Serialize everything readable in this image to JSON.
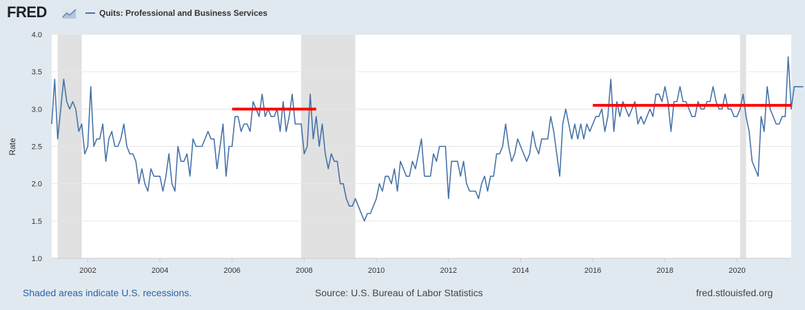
{
  "brand": {
    "logo_text": "FRED"
  },
  "chart_data": {
    "type": "line",
    "title": "",
    "series": [
      {
        "name": "Quits: Professional and Business Services",
        "color": "#4572a7",
        "values": [
          2.8,
          3.4,
          2.6,
          3.0,
          3.4,
          3.1,
          3.0,
          3.1,
          3.0,
          2.7,
          2.8,
          2.4,
          2.5,
          3.3,
          2.5,
          2.6,
          2.6,
          2.8,
          2.3,
          2.6,
          2.7,
          2.5,
          2.5,
          2.6,
          2.8,
          2.5,
          2.4,
          2.4,
          2.3,
          2.0,
          2.2,
          2.0,
          1.9,
          2.2,
          2.1,
          2.1,
          2.1,
          1.9,
          2.1,
          2.4,
          2.0,
          1.9,
          2.5,
          2.3,
          2.3,
          2.4,
          2.1,
          2.6,
          2.5,
          2.5,
          2.5,
          2.6,
          2.7,
          2.6,
          2.6,
          2.2,
          2.5,
          2.8,
          2.1,
          2.5,
          2.5,
          2.9,
          2.9,
          2.7,
          2.8,
          2.8,
          2.7,
          3.1,
          3.0,
          2.9,
          3.2,
          2.9,
          3.0,
          2.9,
          2.9,
          3.0,
          2.7,
          3.1,
          2.7,
          2.9,
          3.2,
          2.8,
          2.8,
          2.8,
          2.4,
          2.5,
          3.2,
          2.6,
          2.9,
          2.5,
          2.8,
          2.4,
          2.2,
          2.4,
          2.3,
          2.3,
          2.0,
          2.0,
          1.8,
          1.7,
          1.7,
          1.8,
          1.7,
          1.6,
          1.5,
          1.6,
          1.6,
          1.7,
          1.8,
          2.0,
          1.9,
          2.1,
          2.1,
          2.0,
          2.2,
          1.9,
          2.3,
          2.2,
          2.1,
          2.1,
          2.3,
          2.2,
          2.4,
          2.6,
          2.1,
          2.1,
          2.1,
          2.4,
          2.3,
          2.5,
          2.5,
          2.5,
          1.8,
          2.3,
          2.3,
          2.3,
          2.1,
          2.3,
          2.0,
          1.9,
          1.9,
          1.9,
          1.8,
          2.0,
          2.1,
          1.9,
          2.1,
          2.1,
          2.4,
          2.4,
          2.5,
          2.8,
          2.5,
          2.3,
          2.4,
          2.6,
          2.5,
          2.4,
          2.3,
          2.4,
          2.7,
          2.5,
          2.4,
          2.6,
          2.6,
          2.6,
          2.9,
          2.7,
          2.4,
          2.1,
          2.8,
          3.0,
          2.8,
          2.6,
          2.8,
          2.6,
          2.8,
          2.6,
          2.8,
          2.7,
          2.8,
          2.9,
          2.9,
          3.0,
          2.7,
          2.9,
          3.4,
          2.7,
          3.1,
          2.9,
          3.1,
          3.0,
          2.9,
          3.0,
          3.1,
          2.8,
          2.9,
          2.8,
          2.9,
          3.0,
          2.9,
          3.2,
          3.2,
          3.1,
          3.3,
          3.1,
          2.7,
          3.1,
          3.1,
          3.3,
          3.1,
          3.1,
          3.0,
          2.9,
          2.9,
          3.1,
          3.0,
          3.0,
          3.1,
          3.1,
          3.3,
          3.1,
          3.0,
          3.0,
          3.2,
          3.0,
          3.0,
          2.9,
          2.9,
          3.0,
          3.2,
          2.9,
          2.7,
          2.3,
          2.2,
          2.1,
          2.9,
          2.7,
          3.3,
          3.0,
          2.9,
          2.8,
          2.8,
          2.9,
          2.9,
          3.7,
          3.0,
          3.3,
          3.3,
          3.3,
          3.3
        ]
      }
    ],
    "x_start": "2001-01",
    "x_end": "2021-07",
    "frequency": "monthly",
    "ylabel": "Rate",
    "ylim": [
      1.0,
      4.0
    ],
    "y_ticks": [
      "1.0",
      "1.5",
      "2.0",
      "2.5",
      "3.0",
      "3.5",
      "4.0"
    ],
    "x_ticks": [
      "2002",
      "2004",
      "2006",
      "2008",
      "2010",
      "2012",
      "2014",
      "2016",
      "2018",
      "2020"
    ],
    "recessions": [
      {
        "start": "2001-03",
        "end": "2001-11"
      },
      {
        "start": "2007-12",
        "end": "2009-06"
      },
      {
        "start": "2020-02",
        "end": "2020-04"
      }
    ],
    "annotations": [
      {
        "type": "horizontal-line",
        "color": "#ff0000",
        "y": 3.0,
        "x_start": "2006-01",
        "x_end": "2008-05"
      },
      {
        "type": "horizontal-line",
        "color": "#ff0000",
        "y": 3.05,
        "x_start": "2016-01",
        "x_end": "2021-07"
      }
    ],
    "grid": true,
    "legend_position": "top-left"
  },
  "footer": {
    "recession_note": "Shaded areas indicate U.S. recessions.",
    "source": "Source: U.S. Bureau of Labor Statistics",
    "site": "fred.stlouisfed.org"
  }
}
